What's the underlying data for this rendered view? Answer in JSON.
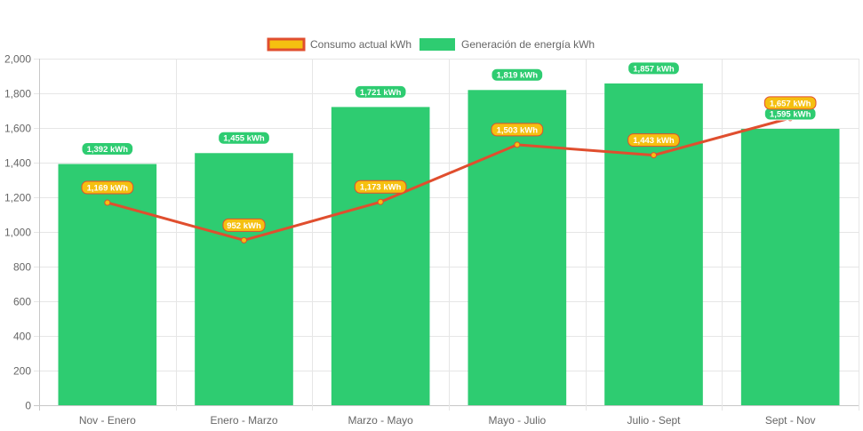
{
  "chart_data": {
    "type": "bar",
    "categories": [
      "Nov - Enero",
      "Enero - Marzo",
      "Marzo - Mayo",
      "Mayo - Julio",
      "Julio - Sept",
      "Sept - Nov"
    ],
    "series": [
      {
        "name": "Consumo actual kWh",
        "type": "line",
        "values": [
          1169,
          952,
          1173,
          1503,
          1443,
          1657
        ],
        "labels": [
          "1,169 kWh",
          "952 kWh",
          "1,173 kWh",
          "1,503 kWh",
          "1,443 kWh",
          "1,657 kWh"
        ],
        "color": "#e04e2e",
        "fill_color": "#f5c010"
      },
      {
        "name": "Generación de energía kWh",
        "type": "bar",
        "values": [
          1392,
          1455,
          1721,
          1819,
          1857,
          1595
        ],
        "labels": [
          "1,392 kWh",
          "1,455 kWh",
          "1,721 kWh",
          "1,819 kWh",
          "1,857 kWh",
          "1,595 kWh"
        ],
        "color": "#2ecc71"
      }
    ],
    "ylim": [
      0,
      2000
    ],
    "yticks": [
      "0",
      "200",
      "400",
      "600",
      "800",
      "1,000",
      "1,200",
      "1,400",
      "1,600",
      "1,800",
      "2,000"
    ],
    "title": "",
    "xlabel": "",
    "ylabel": "",
    "grid": true,
    "legend_position": "top"
  }
}
